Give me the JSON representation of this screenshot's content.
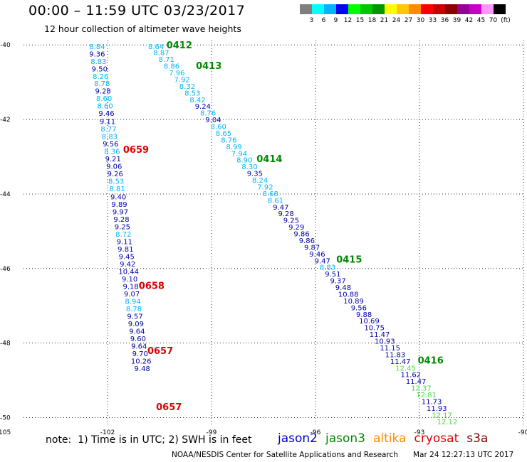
{
  "header": {
    "title": "00:00 – 11:59 UTC 03/23/2017",
    "subtitle": "12 hour collection of altimeter wave heights"
  },
  "color_scale": {
    "unit_label": "(ft)",
    "bins": [
      {
        "label": "3",
        "color": "#7f7f7f"
      },
      {
        "label": "6",
        "color": "#00ffff"
      },
      {
        "label": "9",
        "color": "#00b4ff"
      },
      {
        "label": "12",
        "color": "#0000ff"
      },
      {
        "label": "15",
        "color": "#00ff00"
      },
      {
        "label": "18",
        "color": "#00c800"
      },
      {
        "label": "21",
        "color": "#009600"
      },
      {
        "label": "24",
        "color": "#ffff00"
      },
      {
        "label": "27",
        "color": "#ffc800"
      },
      {
        "label": "30",
        "color": "#ff8c00"
      },
      {
        "label": "33",
        "color": "#ff0000"
      },
      {
        "label": "36",
        "color": "#c80000"
      },
      {
        "label": "39",
        "color": "#8c0000"
      },
      {
        "label": "42",
        "color": "#960096"
      },
      {
        "label": "45",
        "color": "#c800c8"
      },
      {
        "label": "70",
        "color": "#ff96ff"
      },
      {
        "label": "",
        "color": "#000000"
      }
    ]
  },
  "map": {
    "lon_range": [
      -105,
      -90
    ],
    "lat_range": [
      -50.2,
      -39.9
    ],
    "lon_ticks": [
      {
        "value": -105,
        "label": "-105"
      },
      {
        "value": -102,
        "label": "-102"
      },
      {
        "value": -99,
        "label": "-99"
      },
      {
        "value": -96,
        "label": "-96"
      },
      {
        "value": -93,
        "label": "-93"
      },
      {
        "value": -90,
        "label": "-90"
      }
    ],
    "lat_ticks": [
      {
        "value": -40,
        "label": "-40"
      },
      {
        "value": -42,
        "label": "-42"
      },
      {
        "value": -44,
        "label": "-44"
      },
      {
        "value": -46,
        "label": "-46"
      },
      {
        "value": -48,
        "label": "-48"
      },
      {
        "value": -50,
        "label": "-50"
      }
    ]
  },
  "tracks": [
    {
      "name": "track-west",
      "points": [
        {
          "lon": -102.3,
          "lat": -40.03,
          "v": "8.84",
          "c": "#00b4ff"
        },
        {
          "lon": -102.3,
          "lat": -40.23,
          "v": "9.36",
          "c": "#0000aa"
        },
        {
          "lon": -102.26,
          "lat": -40.43,
          "v": "8.83",
          "c": "#00b4ff"
        },
        {
          "lon": -102.23,
          "lat": -40.63,
          "v": "9.50",
          "c": "#0000aa"
        },
        {
          "lon": -102.2,
          "lat": -40.83,
          "v": "8.26",
          "c": "#00b4ff"
        },
        {
          "lon": -102.16,
          "lat": -41.03,
          "v": "8.78",
          "c": "#00b4ff"
        },
        {
          "lon": -102.13,
          "lat": -41.23,
          "v": "9.28",
          "c": "#0000aa"
        },
        {
          "lon": -102.1,
          "lat": -41.43,
          "v": "8.60",
          "c": "#00b4ff"
        },
        {
          "lon": -102.07,
          "lat": -41.63,
          "v": "8.60",
          "c": "#00b4ff"
        },
        {
          "lon": -102.03,
          "lat": -41.83,
          "v": "9.46",
          "c": "#0000aa"
        },
        {
          "lon": -102.0,
          "lat": -42.05,
          "v": "9.11",
          "c": "#0000aa"
        },
        {
          "lon": -101.97,
          "lat": -42.25,
          "v": "8.77",
          "c": "#00b4ff"
        },
        {
          "lon": -101.94,
          "lat": -42.45,
          "v": "8.83",
          "c": "#00b4ff"
        },
        {
          "lon": -101.91,
          "lat": -42.65,
          "v": "9.56",
          "c": "#0000aa"
        },
        {
          "lon": -101.87,
          "lat": -42.85,
          "v": "8.36",
          "c": "#00b4ff"
        },
        {
          "lon": -101.84,
          "lat": -43.05,
          "v": "9.21",
          "c": "#0000aa"
        },
        {
          "lon": -101.81,
          "lat": -43.25,
          "v": "9.06",
          "c": "#0000aa"
        },
        {
          "lon": -101.78,
          "lat": -43.45,
          "v": "9.26",
          "c": "#0000aa"
        },
        {
          "lon": -101.75,
          "lat": -43.65,
          "v": "8.53",
          "c": "#00b4ff"
        },
        {
          "lon": -101.72,
          "lat": -43.85,
          "v": "8.81",
          "c": "#00b4ff"
        },
        {
          "lon": -101.69,
          "lat": -44.07,
          "v": "9.40",
          "c": "#0000aa"
        },
        {
          "lon": -101.66,
          "lat": -44.27,
          "v": "9.89",
          "c": "#0000aa"
        },
        {
          "lon": -101.63,
          "lat": -44.47,
          "v": "9.97",
          "c": "#0000aa"
        },
        {
          "lon": -101.6,
          "lat": -44.67,
          "v": "9.28",
          "c": "#0000aa"
        },
        {
          "lon": -101.57,
          "lat": -44.87,
          "v": "9.25",
          "c": "#0000aa"
        },
        {
          "lon": -101.54,
          "lat": -45.07,
          "v": "8.72",
          "c": "#00b4ff"
        },
        {
          "lon": -101.51,
          "lat": -45.27,
          "v": "9.11",
          "c": "#0000aa"
        },
        {
          "lon": -101.48,
          "lat": -45.47,
          "v": "9.81",
          "c": "#0000aa"
        },
        {
          "lon": -101.45,
          "lat": -45.67,
          "v": "9.45",
          "c": "#0000aa"
        },
        {
          "lon": -101.42,
          "lat": -45.87,
          "v": "9.42",
          "c": "#0000aa"
        },
        {
          "lon": -101.39,
          "lat": -46.07,
          "v": "10.44",
          "c": "#0000aa"
        },
        {
          "lon": -101.36,
          "lat": -46.27,
          "v": "9.10",
          "c": "#0000aa"
        },
        {
          "lon": -101.33,
          "lat": -46.47,
          "v": "9.18",
          "c": "#0000aa"
        },
        {
          "lon": -101.3,
          "lat": -46.67,
          "v": "9.07",
          "c": "#0000aa"
        },
        {
          "lon": -101.27,
          "lat": -46.87,
          "v": "8.94",
          "c": "#00b4ff"
        },
        {
          "lon": -101.24,
          "lat": -47.07,
          "v": "8.78",
          "c": "#00b4ff"
        },
        {
          "lon": -101.21,
          "lat": -47.27,
          "v": "9.57",
          "c": "#0000aa"
        },
        {
          "lon": -101.18,
          "lat": -47.47,
          "v": "9.09",
          "c": "#0000aa"
        },
        {
          "lon": -101.15,
          "lat": -47.67,
          "v": "9.64",
          "c": "#0000aa"
        },
        {
          "lon": -101.12,
          "lat": -47.87,
          "v": "9.60",
          "c": "#0000aa"
        },
        {
          "lon": -101.09,
          "lat": -48.07,
          "v": "9.64",
          "c": "#0000aa"
        },
        {
          "lon": -101.06,
          "lat": -48.27,
          "v": "9.70",
          "c": "#0000aa"
        },
        {
          "lon": -101.03,
          "lat": -48.47,
          "v": "10.26",
          "c": "#0000aa"
        },
        {
          "lon": -101.0,
          "lat": -48.67,
          "v": "9.48",
          "c": "#0000aa"
        }
      ]
    },
    {
      "name": "track-diagonal",
      "points": [
        {
          "lon": -100.6,
          "lat": -40.03,
          "v": "8.64",
          "c": "#00b4ff"
        },
        {
          "lon": -100.45,
          "lat": -40.2,
          "v": "8.87",
          "c": "#00b4ff"
        },
        {
          "lon": -100.3,
          "lat": -40.38,
          "v": "8.71",
          "c": "#00b4ff"
        },
        {
          "lon": -100.15,
          "lat": -40.56,
          "v": "8.86",
          "c": "#00b4ff"
        },
        {
          "lon": -100.0,
          "lat": -40.74,
          "v": "7.96",
          "c": "#00b4ff"
        },
        {
          "lon": -99.85,
          "lat": -40.92,
          "v": "7.92",
          "c": "#00b4ff"
        },
        {
          "lon": -99.7,
          "lat": -41.1,
          "v": "8.32",
          "c": "#00b4ff"
        },
        {
          "lon": -99.55,
          "lat": -41.28,
          "v": "8.53",
          "c": "#00b4ff"
        },
        {
          "lon": -99.4,
          "lat": -41.46,
          "v": "8.42",
          "c": "#00b4ff"
        },
        {
          "lon": -99.25,
          "lat": -41.64,
          "v": "9.24",
          "c": "#0000aa"
        },
        {
          "lon": -99.1,
          "lat": -41.82,
          "v": "8.76",
          "c": "#00b4ff"
        },
        {
          "lon": -98.95,
          "lat": -42.0,
          "v": "9.04",
          "c": "#0000aa"
        },
        {
          "lon": -98.8,
          "lat": -42.18,
          "v": "8.60",
          "c": "#00b4ff"
        },
        {
          "lon": -98.65,
          "lat": -42.36,
          "v": "8.65",
          "c": "#00b4ff"
        },
        {
          "lon": -98.5,
          "lat": -42.54,
          "v": "8.76",
          "c": "#00b4ff"
        },
        {
          "lon": -98.35,
          "lat": -42.72,
          "v": "8.99",
          "c": "#00b4ff"
        },
        {
          "lon": -98.2,
          "lat": -42.9,
          "v": "7.94",
          "c": "#00b4ff"
        },
        {
          "lon": -98.05,
          "lat": -43.08,
          "v": "8.90",
          "c": "#00b4ff"
        },
        {
          "lon": -97.9,
          "lat": -43.26,
          "v": "8.30",
          "c": "#00b4ff"
        },
        {
          "lon": -97.75,
          "lat": -43.44,
          "v": "9.35",
          "c": "#0000aa"
        },
        {
          "lon": -97.6,
          "lat": -43.62,
          "v": "8.24",
          "c": "#00b4ff"
        },
        {
          "lon": -97.45,
          "lat": -43.8,
          "v": "7.92",
          "c": "#00b4ff"
        },
        {
          "lon": -97.3,
          "lat": -43.98,
          "v": "8.68",
          "c": "#00b4ff"
        },
        {
          "lon": -97.15,
          "lat": -44.16,
          "v": "8.61",
          "c": "#00b4ff"
        },
        {
          "lon": -97.0,
          "lat": -44.34,
          "v": "9.47",
          "c": "#0000aa"
        },
        {
          "lon": -96.85,
          "lat": -44.52,
          "v": "9.28",
          "c": "#0000aa"
        },
        {
          "lon": -96.7,
          "lat": -44.7,
          "v": "9.25",
          "c": "#0000aa"
        },
        {
          "lon": -96.55,
          "lat": -44.88,
          "v": "9.29",
          "c": "#0000aa"
        },
        {
          "lon": -96.4,
          "lat": -45.06,
          "v": "9.86",
          "c": "#0000aa"
        },
        {
          "lon": -96.25,
          "lat": -45.24,
          "v": "9.86",
          "c": "#0000aa"
        },
        {
          "lon": -96.1,
          "lat": -45.42,
          "v": "9.87",
          "c": "#0000aa"
        },
        {
          "lon": -95.95,
          "lat": -45.6,
          "v": "9.46",
          "c": "#0000aa"
        },
        {
          "lon": -95.8,
          "lat": -45.78,
          "v": "9.47",
          "c": "#0000aa"
        },
        {
          "lon": -95.65,
          "lat": -45.96,
          "v": "8.83",
          "c": "#00b4ff"
        },
        {
          "lon": -95.5,
          "lat": -46.14,
          "v": "9.51",
          "c": "#0000aa"
        },
        {
          "lon": -95.35,
          "lat": -46.32,
          "v": "9.37",
          "c": "#0000aa"
        },
        {
          "lon": -95.2,
          "lat": -46.5,
          "v": "9.48",
          "c": "#0000aa"
        },
        {
          "lon": -95.05,
          "lat": -46.68,
          "v": "10.88",
          "c": "#0000aa"
        },
        {
          "lon": -94.9,
          "lat": -46.86,
          "v": "10.89",
          "c": "#0000aa"
        },
        {
          "lon": -94.75,
          "lat": -47.04,
          "v": "9.56",
          "c": "#0000aa"
        },
        {
          "lon": -94.6,
          "lat": -47.22,
          "v": "9.88",
          "c": "#0000aa"
        },
        {
          "lon": -94.45,
          "lat": -47.4,
          "v": "10.69",
          "c": "#0000aa"
        },
        {
          "lon": -94.3,
          "lat": -47.58,
          "v": "10.75",
          "c": "#0000aa"
        },
        {
          "lon": -94.15,
          "lat": -47.76,
          "v": "11.47",
          "c": "#0000aa"
        },
        {
          "lon": -94.0,
          "lat": -47.94,
          "v": "10.93",
          "c": "#0000aa"
        },
        {
          "lon": -93.85,
          "lat": -48.12,
          "v": "11.15",
          "c": "#0000aa"
        },
        {
          "lon": -93.7,
          "lat": -48.3,
          "v": "11.83",
          "c": "#0000aa"
        },
        {
          "lon": -93.55,
          "lat": -48.48,
          "v": "11.47",
          "c": "#0000aa"
        },
        {
          "lon": -93.4,
          "lat": -48.66,
          "v": "12.45",
          "c": "#44dd44"
        },
        {
          "lon": -93.25,
          "lat": -48.84,
          "v": "11.62",
          "c": "#0000aa"
        },
        {
          "lon": -93.1,
          "lat": -49.02,
          "v": "11.47",
          "c": "#0000aa"
        },
        {
          "lon": -92.95,
          "lat": -49.2,
          "v": "12.37",
          "c": "#44dd44"
        },
        {
          "lon": -92.8,
          "lat": -49.38,
          "v": "12.81",
          "c": "#44dd44"
        },
        {
          "lon": -92.65,
          "lat": -49.56,
          "v": "11.73",
          "c": "#0000aa"
        },
        {
          "lon": -92.5,
          "lat": -49.74,
          "v": "11.93",
          "c": "#0000aa"
        },
        {
          "lon": -92.35,
          "lat": -49.92,
          "v": "12.17",
          "c": "#44dd44"
        },
        {
          "lon": -92.2,
          "lat": -50.1,
          "v": "12.12",
          "c": "#44dd44"
        }
      ]
    }
  ],
  "time_labels": [
    {
      "lon": -100.3,
      "lat": -40.0,
      "text": "0412",
      "c": "#008800"
    },
    {
      "lon": -99.45,
      "lat": -40.55,
      "text": "0413",
      "c": "#008800"
    },
    {
      "lon": -97.7,
      "lat": -43.05,
      "text": "0414",
      "c": "#008800"
    },
    {
      "lon": -95.4,
      "lat": -45.75,
      "text": "0415",
      "c": "#008800"
    },
    {
      "lon": -93.05,
      "lat": -48.45,
      "text": "0416",
      "c": "#008800"
    },
    {
      "lon": -101.55,
      "lat": -42.8,
      "text": "0659",
      "c": "#dd0000"
    },
    {
      "lon": -101.1,
      "lat": -46.45,
      "text": "0658",
      "c": "#dd0000"
    },
    {
      "lon": -100.85,
      "lat": -48.2,
      "text": "0657",
      "c": "#dd0000"
    },
    {
      "lon": -100.6,
      "lat": -49.7,
      "text": "0657",
      "c": "#dd0000"
    }
  ],
  "note": "note:  1) Time is in UTC; 2) SWH is in feet",
  "legend": [
    {
      "label": "jason2",
      "color": "#0000cc"
    },
    {
      "label": "jason3",
      "color": "#008800"
    },
    {
      "label": "altika",
      "color": "#ff8c00"
    },
    {
      "label": "cryosat",
      "color": "#dd0000"
    },
    {
      "label": "s3a",
      "color": "#880000"
    }
  ],
  "footer": {
    "credit": "NOAA/NESDIS Center for Satellite Applications and Research",
    "timestamp": "Mar 24 12:27:13 UTC 2017"
  }
}
